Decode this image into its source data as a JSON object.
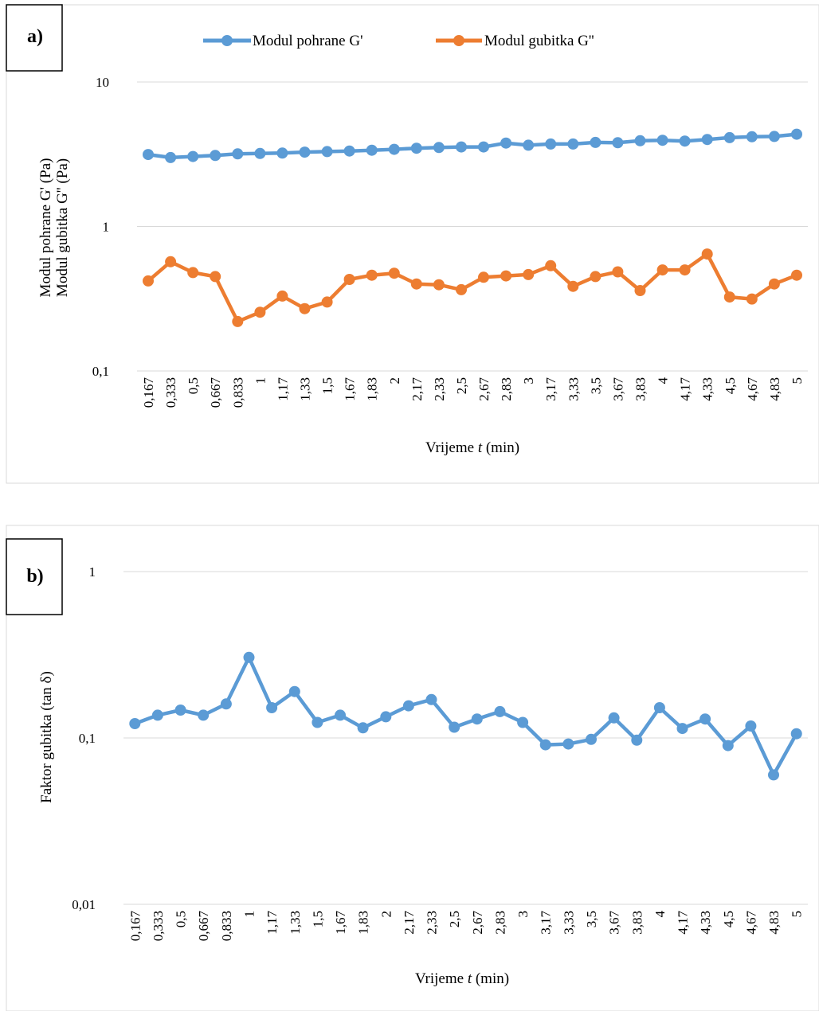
{
  "chart_data": [
    {
      "type": "line",
      "panel_label": "a)",
      "y_scale": "log",
      "ylim": [
        0.1,
        10
      ],
      "y_ticks": [
        "0,1",
        "1",
        "10"
      ],
      "ylabel_lines": [
        "Modul pohrane G' (Pa)",
        "Modul gubitka G'' (Pa)"
      ],
      "xlabel_parts": [
        "Vrijeme ",
        "t",
        " (min)"
      ],
      "legend_placement": "top",
      "grid": true,
      "categories": [
        "0,167",
        "0,333",
        "0,5",
        "0,667",
        "0,833",
        "1",
        "1,17",
        "1,33",
        "1,5",
        "1,67",
        "1,83",
        "2",
        "2,17",
        "2,33",
        "2,5",
        "2,67",
        "2,83",
        "3",
        "3,17",
        "3,33",
        "3,5",
        "3,67",
        "3,83",
        "4",
        "4,17",
        "4,33",
        "4,5",
        "4,67",
        "4,83",
        "5"
      ],
      "series": [
        {
          "name": "Modul pohrane G'",
          "color": "#5B9BD5",
          "values": [
            3.15,
            3.0,
            3.05,
            3.1,
            3.18,
            3.2,
            3.22,
            3.27,
            3.3,
            3.33,
            3.37,
            3.42,
            3.48,
            3.52,
            3.55,
            3.55,
            3.78,
            3.65,
            3.72,
            3.72,
            3.82,
            3.8,
            3.92,
            3.95,
            3.9,
            4.0,
            4.12,
            4.18,
            4.2,
            4.35
          ]
        },
        {
          "name": "Modul gubitka G''",
          "color": "#ED7D31",
          "values": [
            0.42,
            0.57,
            0.48,
            0.45,
            0.22,
            0.255,
            0.33,
            0.27,
            0.3,
            0.43,
            0.46,
            0.475,
            0.4,
            0.395,
            0.365,
            0.445,
            0.455,
            0.465,
            0.535,
            0.385,
            0.45,
            0.485,
            0.36,
            0.5,
            0.5,
            0.645,
            0.325,
            0.315,
            0.4,
            0.46
          ]
        }
      ]
    },
    {
      "type": "line",
      "panel_label": "b)",
      "y_scale": "log",
      "ylim": [
        0.01,
        1
      ],
      "y_ticks": [
        "0,01",
        "0,1",
        "1"
      ],
      "ylabel_lines": [
        "Faktor gubitka (tan δ)"
      ],
      "xlabel_parts": [
        "Vrijeme ",
        "t",
        " (min)"
      ],
      "grid": true,
      "categories": [
        "0,167",
        "0,333",
        "0,5",
        "0,667",
        "0,833",
        "1",
        "1,17",
        "1,33",
        "1,5",
        "1,67",
        "1,83",
        "2",
        "2,17",
        "2,33",
        "2,5",
        "2,67",
        "2,83",
        "3",
        "3,17",
        "3,33",
        "3,5",
        "3,67",
        "3,83",
        "4",
        "4,17",
        "4,33",
        "4,5",
        "4,67",
        "4,83",
        "5"
      ],
      "series": [
        {
          "color": "#5B9BD5",
          "values": [
            0.122,
            0.137,
            0.147,
            0.137,
            0.16,
            0.305,
            0.152,
            0.19,
            0.124,
            0.137,
            0.115,
            0.134,
            0.156,
            0.17,
            0.116,
            0.13,
            0.144,
            0.124,
            0.091,
            0.092,
            0.098,
            0.132,
            0.097,
            0.152,
            0.114,
            0.13,
            0.09,
            0.118,
            0.06,
            0.106
          ]
        }
      ]
    }
  ]
}
